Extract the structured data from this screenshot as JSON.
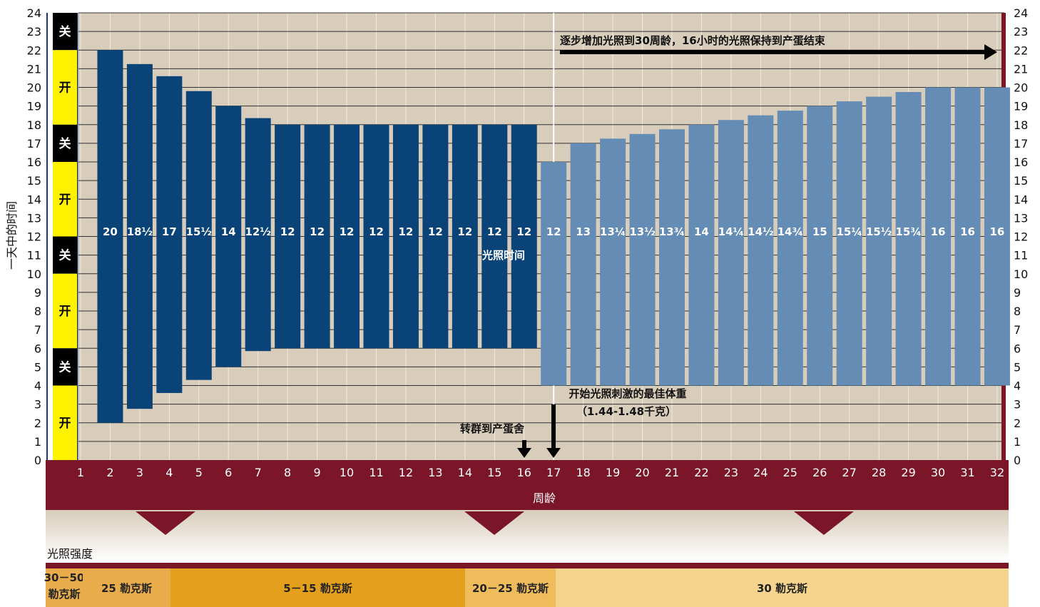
{
  "colors": {
    "plot_bg": "#d8ccba",
    "dark_bar": "#0a4378",
    "light_bar": "#658cb5",
    "maroon": "#7a1628",
    "on_yellow": "#fff200",
    "off_black": "#000000",
    "band_a": "#e8ad4a",
    "band_b": "#e49f1c",
    "band_c": "#efbc5c",
    "band_d": "#f5d48e"
  },
  "y_axis": {
    "label": "一天中的时间",
    "min": 0,
    "max": 24
  },
  "x_axis": {
    "label": "周龄"
  },
  "onoff_strip": [
    {
      "label": "开",
      "state": "on",
      "from": 0,
      "to": 4
    },
    {
      "label": "关",
      "state": "off",
      "from": 4,
      "to": 6
    },
    {
      "label": "开",
      "state": "on",
      "from": 6,
      "to": 12
    },
    {
      "label": "关",
      "state": "off",
      "from": 12,
      "to": 12.3
    },
    {
      "label": "关",
      "state": "off",
      "from": 12.3,
      "to": 18
    },
    {
      "label": "开",
      "state": "on",
      "from": 12.2,
      "to": 16
    },
    {
      "label": "关",
      "state": "off",
      "from": 16,
      "to": 18
    },
    {
      "label": "开",
      "state": "on",
      "from": 18,
      "to": 22
    },
    {
      "label": "关",
      "state": "off",
      "from": 22,
      "to": 24
    }
  ],
  "chart_data": {
    "type": "bar",
    "title": "",
    "xlabel": "周龄",
    "ylabel": "一天中的时间",
    "ylim": [
      0,
      24
    ],
    "center_label": "光照时间",
    "weeks": [
      2,
      3,
      4,
      5,
      6,
      7,
      8,
      9,
      10,
      11,
      12,
      13,
      14,
      15,
      16,
      17,
      18,
      19,
      20,
      21,
      22,
      23,
      24,
      25,
      26,
      27,
      28,
      29,
      30,
      31,
      32
    ],
    "week_tick_labels": [
      "1",
      "2",
      "3",
      "4",
      "5",
      "6",
      "7",
      "8",
      "9",
      "10",
      "11",
      "12",
      "13",
      "14",
      "15",
      "16",
      "17",
      "18",
      "19",
      "20",
      "21",
      "22",
      "23",
      "24",
      "25",
      "26",
      "27",
      "28",
      "29",
      "30",
      "31",
      "32"
    ],
    "photoperiod_labels": [
      "20",
      "18½",
      "17",
      "15½",
      "14",
      "12½",
      "12",
      "12",
      "12",
      "12",
      "12",
      "12",
      "12",
      "12",
      "12",
      "12",
      "13",
      "13¼",
      "13½",
      "13¾",
      "14",
      "14¼",
      "14½",
      "14¾",
      "15",
      "15¼",
      "15½",
      "15¾",
      "16",
      "16",
      "16"
    ],
    "lights_on": [
      2,
      2.75,
      3.6,
      4.3,
      5,
      5.85,
      6,
      6,
      6,
      6,
      6,
      6,
      6,
      6,
      6,
      4,
      4,
      4,
      4,
      4,
      4,
      4,
      4,
      4,
      4,
      4,
      4,
      4,
      4,
      4,
      4
    ],
    "lights_off": [
      22,
      21.25,
      20.6,
      19.8,
      19,
      18.35,
      18,
      18,
      18,
      18,
      18,
      18,
      18,
      18,
      18,
      16,
      17,
      17.25,
      17.5,
      17.75,
      18,
      18.25,
      18.5,
      18.75,
      19,
      19.25,
      19.5,
      19.75,
      20,
      20,
      20
    ]
  },
  "annotations": {
    "increase_note": "逐步增加光照到30周龄，16小时的光照保持到产蛋结束",
    "best_weight_line1": "开始光照刺激的最佳体重",
    "best_weight_line2": "（1.44-1.48千克）",
    "transfer": "转群到产蛋舍"
  },
  "intensity": {
    "title": "光照强度",
    "bands": [
      {
        "label_line1": "30－50",
        "label_line2": "勒克斯",
        "color": "#e8ad4a"
      },
      {
        "label_line1": "25 勒克斯",
        "label_line2": "",
        "color": "#e8ad4a"
      },
      {
        "label_line1": "5－15 勒克斯",
        "label_line2": "",
        "color": "#e49f1c"
      },
      {
        "label_line1": "20－25 勒克斯",
        "label_line2": "",
        "color": "#efbc5c"
      },
      {
        "label_line1": "30 勒克斯",
        "label_line2": "",
        "color": "#f5d48e"
      }
    ]
  }
}
